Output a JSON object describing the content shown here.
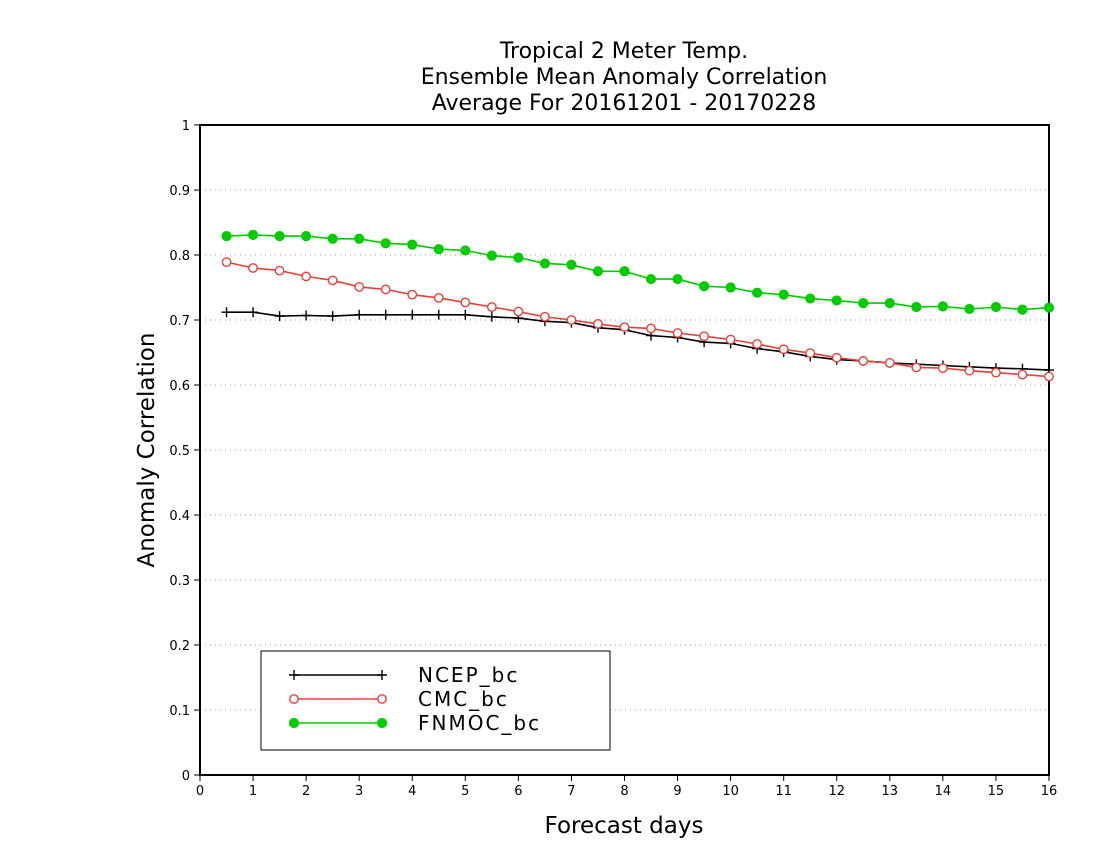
{
  "chart_data": {
    "type": "line",
    "title": [
      "Tropical 2 Meter Temp.",
      "Ensemble Mean Anomaly Correlation",
      "Average For 20161201 - 20170228"
    ],
    "xlabel": "Forecast days",
    "ylabel": "Anomaly Correlation",
    "xlim": [
      0,
      16
    ],
    "ylim": [
      0,
      1
    ],
    "xticks": [
      0,
      1,
      2,
      3,
      4,
      5,
      6,
      7,
      8,
      9,
      10,
      11,
      12,
      13,
      14,
      15,
      16
    ],
    "yticks": [
      0,
      0.1,
      0.2,
      0.3,
      0.4,
      0.5,
      0.6,
      0.7,
      0.8,
      0.9,
      1
    ],
    "ytick_labels": [
      "0",
      "0.1",
      "0.2",
      "0.3",
      "0.4",
      "0.5",
      "0.6",
      "0.7",
      "0.8",
      "0.9",
      "1"
    ],
    "grid": "horizontal-dotted",
    "legend_placement": "bottom-left",
    "x": [
      0.5,
      1,
      1.5,
      2,
      2.5,
      3,
      3.5,
      4,
      4.5,
      5,
      5.5,
      6,
      6.5,
      7,
      7.5,
      8,
      8.5,
      9,
      9.5,
      10,
      10.5,
      11,
      11.5,
      12,
      12.5,
      13,
      13.5,
      14,
      14.5,
      15,
      15.5,
      16
    ],
    "series": [
      {
        "name": "NCEP_bc",
        "color": "#000000",
        "marker": "plus",
        "values": [
          0.712,
          0.712,
          0.706,
          0.707,
          0.706,
          0.708,
          0.708,
          0.708,
          0.708,
          0.708,
          0.705,
          0.703,
          0.698,
          0.696,
          0.688,
          0.685,
          0.676,
          0.673,
          0.666,
          0.664,
          0.656,
          0.651,
          0.644,
          0.639,
          0.637,
          0.634,
          0.632,
          0.63,
          0.628,
          0.626,
          0.625,
          0.623
        ]
      },
      {
        "name": "CMC_bc",
        "color": "#e8403a",
        "marker": "open-circle",
        "values": [
          0.789,
          0.78,
          0.776,
          0.767,
          0.761,
          0.751,
          0.747,
          0.739,
          0.734,
          0.727,
          0.72,
          0.713,
          0.705,
          0.7,
          0.694,
          0.689,
          0.687,
          0.68,
          0.675,
          0.67,
          0.663,
          0.655,
          0.649,
          0.642,
          0.637,
          0.634,
          0.627,
          0.626,
          0.622,
          0.619,
          0.616,
          0.613
        ]
      },
      {
        "name": "FNMOC_bc",
        "color": "#00cc00",
        "marker": "filled-circle",
        "values": [
          0.829,
          0.831,
          0.829,
          0.829,
          0.825,
          0.825,
          0.818,
          0.816,
          0.809,
          0.807,
          0.799,
          0.796,
          0.787,
          0.785,
          0.775,
          0.775,
          0.763,
          0.763,
          0.752,
          0.75,
          0.742,
          0.739,
          0.733,
          0.73,
          0.726,
          0.726,
          0.72,
          0.721,
          0.717,
          0.72,
          0.716,
          0.719
        ]
      }
    ]
  }
}
